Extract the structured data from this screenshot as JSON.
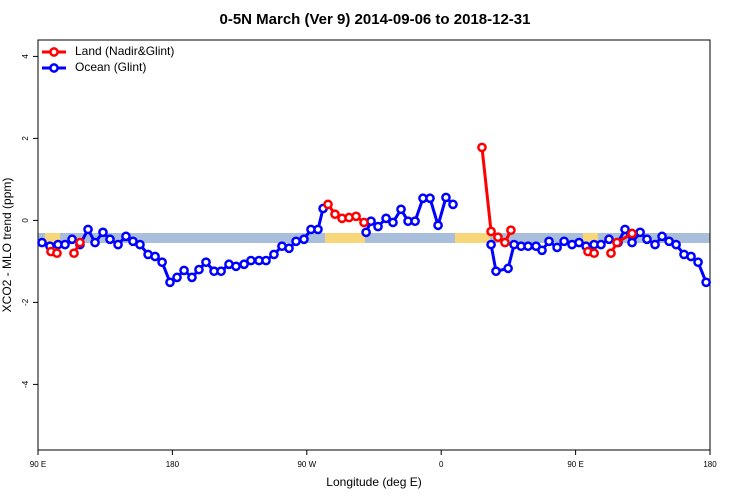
{
  "chart_data": {
    "type": "line",
    "title": "0-5N March (Ver 9)   2014-09-06 to 2018-12-31",
    "x_label": "Longitude (deg E)",
    "y_label": "XCO2 - MLO trend (ppm)",
    "xlim": [
      90,
      540
    ],
    "ylim": [
      -5.6,
      4.4
    ],
    "xticks": [
      {
        "value": 90,
        "label": "90 E"
      },
      {
        "value": 180,
        "label": "180"
      },
      {
        "value": 270,
        "label": "90 W"
      },
      {
        "value": 360,
        "label": "0"
      },
      {
        "value": 450,
        "label": "90 E"
      },
      {
        "value": 540,
        "label": "180"
      }
    ],
    "yticks": [
      -4,
      -2,
      0,
      2,
      4
    ],
    "legend": "top-left",
    "series": [
      {
        "name": "Land (Nadir&Glint)",
        "color": "#ff0000",
        "x": [
          98.7,
          102.7,
          null,
          114.1,
          118.1,
          null,
          284.2,
          288.9,
          293.6,
          298.3,
          303.0,
          308.3,
          null,
          387.3,
          393.4,
          398.0,
          402.7,
          406.7,
          null,
          458.3,
          462.4,
          null,
          473.7,
          477.7,
          487.8
        ],
        "values": [
          -0.76,
          -0.8,
          null,
          -0.8,
          -0.54,
          null,
          0.39,
          0.15,
          0.05,
          0.07,
          0.1,
          -0.05,
          null,
          1.78,
          -0.27,
          -0.41,
          -0.54,
          -0.24,
          null,
          -0.76,
          -0.8,
          null,
          -0.8,
          -0.54,
          -0.32
        ]
      },
      {
        "name": "Ocean (Glint)",
        "color": "#0000ff",
        "x": [
          92.7,
          98.0,
          103.4,
          108.1,
          112.8,
          118.1,
          123.5,
          128.2,
          133.5,
          138.2,
          143.6,
          148.9,
          153.6,
          158.3,
          163.7,
          168.4,
          173.1,
          178.4,
          183.1,
          187.8,
          193.1,
          197.8,
          202.5,
          207.9,
          212.6,
          217.9,
          222.6,
          228.0,
          232.6,
          238.0,
          242.7,
          248.0,
          253.4,
          258.1,
          262.8,
          268.1,
          272.8,
          277.5,
          280.9,
          null,
          309.7,
          313.0,
          317.7,
          323.1,
          327.7,
          333.1,
          337.8,
          342.5,
          347.8,
          352.5,
          357.9,
          363.2,
          367.9,
          null,
          393.4,
          396.7,
          404.8,
          408.8,
          413.5,
          418.2,
          423.5,
          427.5,
          432.2,
          437.6,
          442.3,
          447.6,
          452.3,
          457.0,
          462.4,
          467.0,
          472.4,
          478.4,
          483.1,
          487.8,
          493.2,
          497.8,
          503.2,
          507.9,
          512.6,
          517.3,
          522.6,
          527.3,
          532.0,
          537.4
        ],
        "values": [
          -0.54,
          -0.63,
          -0.59,
          -0.59,
          -0.46,
          -0.59,
          -0.22,
          -0.54,
          -0.29,
          -0.46,
          -0.59,
          -0.39,
          -0.51,
          -0.59,
          -0.83,
          -0.88,
          -1.02,
          -1.51,
          -1.39,
          -1.22,
          -1.39,
          -1.2,
          -1.02,
          -1.24,
          -1.24,
          -1.07,
          -1.12,
          -1.07,
          -0.98,
          -0.98,
          -0.98,
          -0.83,
          -0.63,
          -0.68,
          -0.51,
          -0.46,
          -0.22,
          -0.22,
          0.29,
          null,
          -0.29,
          -0.02,
          -0.15,
          0.05,
          -0.05,
          0.27,
          -0.02,
          -0.02,
          0.54,
          0.54,
          -0.12,
          0.56,
          0.39,
          null,
          -0.59,
          -1.24,
          -1.17,
          -0.59,
          -0.63,
          -0.63,
          -0.63,
          -0.73,
          -0.51,
          -0.66,
          -0.51,
          -0.59,
          -0.54,
          -0.63,
          -0.59,
          -0.59,
          -0.46,
          -0.54,
          -0.22,
          -0.54,
          -0.29,
          -0.46,
          -0.59,
          -0.39,
          -0.51,
          -0.59,
          -0.83,
          -0.88,
          -1.02,
          -1.51
        ]
      }
    ]
  }
}
